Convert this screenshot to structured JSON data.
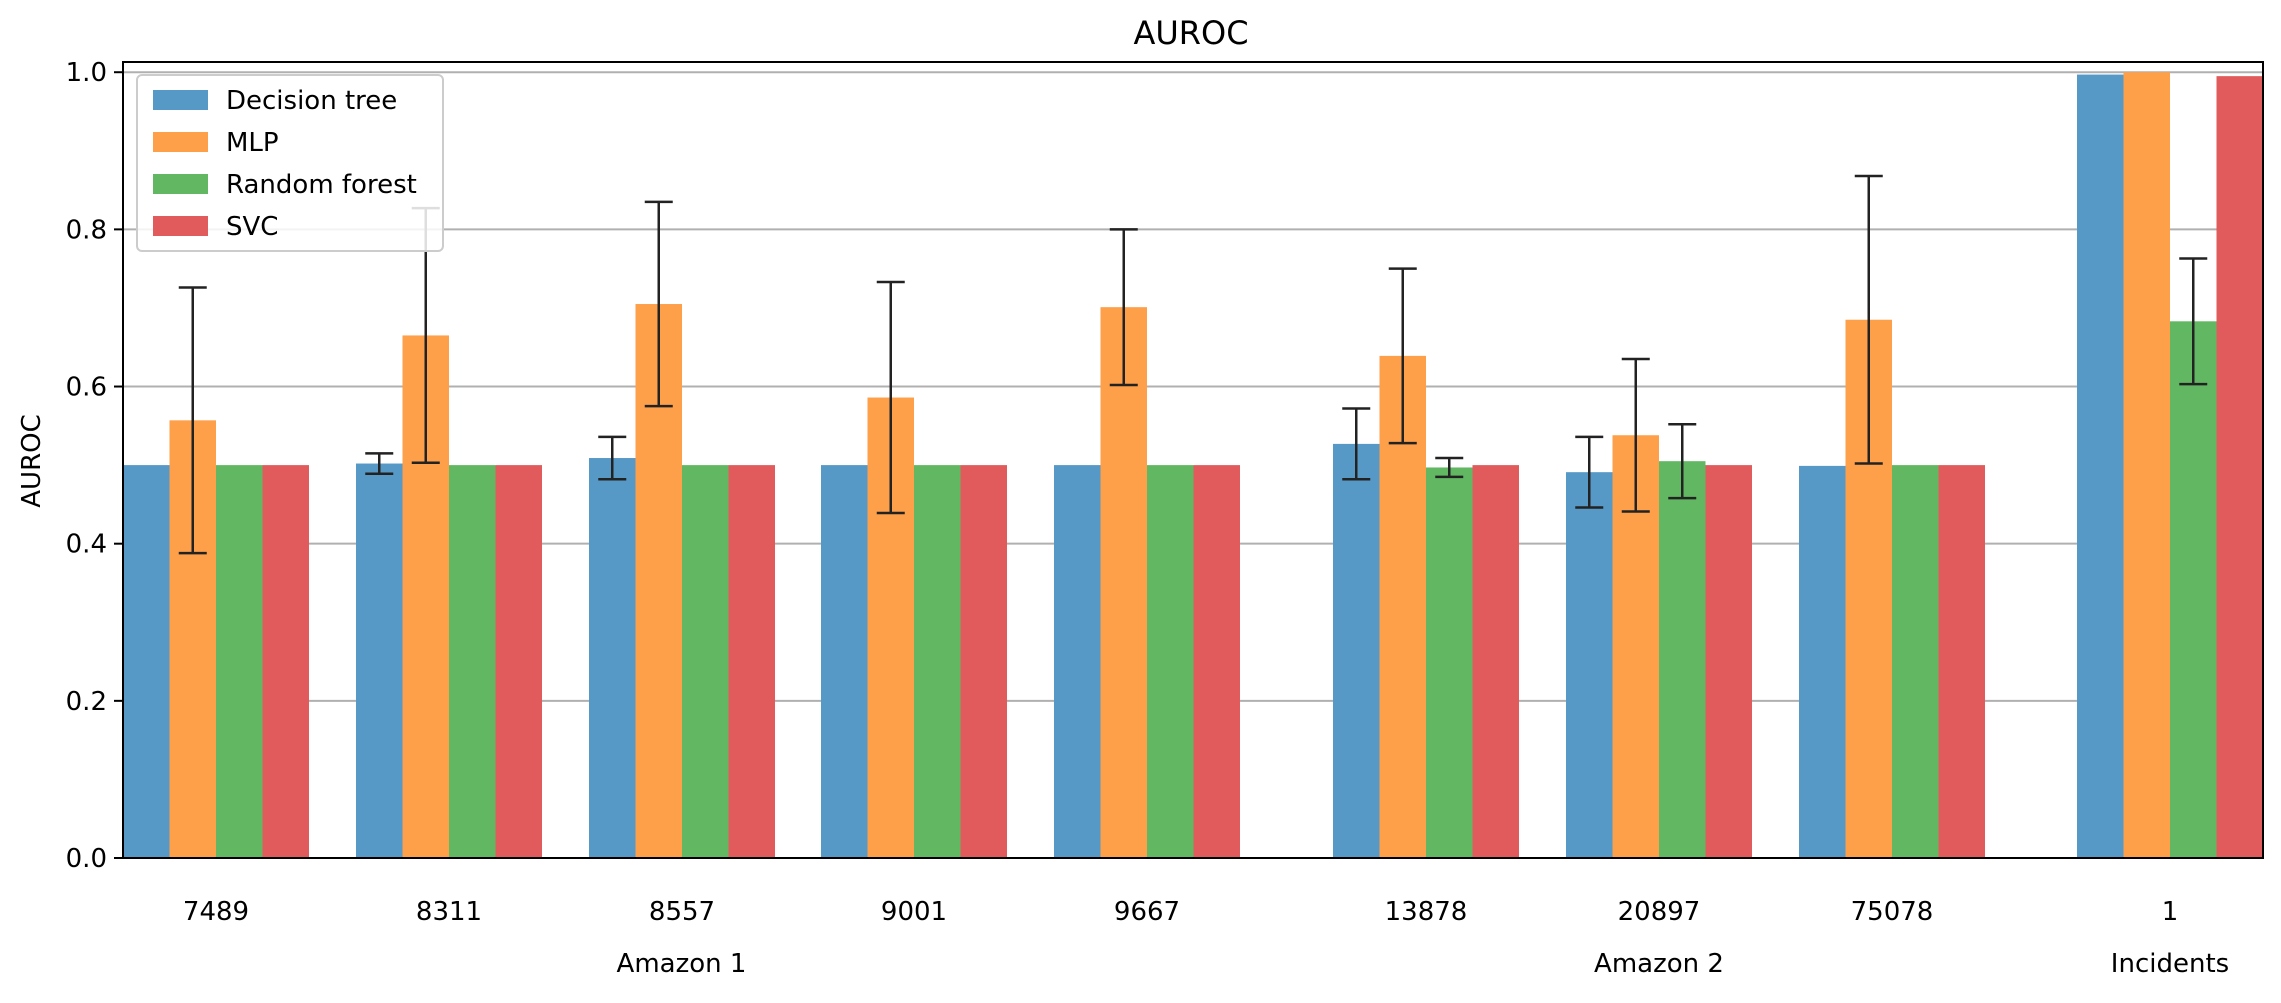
{
  "chart_data": {
    "type": "bar",
    "title": "AUROC",
    "ylabel": "AUROC",
    "xlabel": "",
    "ylim": [
      0,
      1.0
    ],
    "yticks": [
      "0.0",
      "0.2",
      "0.4",
      "0.6",
      "0.8",
      "1.0"
    ],
    "grid": "horizontal",
    "legend_placement": "top-left",
    "categories": [
      "7489",
      "8311",
      "8557",
      "9001",
      "9667",
      "13878",
      "20897",
      "75078",
      "1"
    ],
    "groups": [
      {
        "label": "Amazon 1",
        "categories": [
          "7489",
          "8311",
          "8557",
          "9001",
          "9667"
        ]
      },
      {
        "label": "Amazon 2",
        "categories": [
          "13878",
          "20897",
          "75078"
        ]
      },
      {
        "label": "Incidents",
        "categories": [
          "1"
        ]
      }
    ],
    "series": [
      {
        "name": "Decision tree",
        "color": "#5698c6",
        "values": [
          0.5,
          0.502,
          0.509,
          0.5,
          0.5,
          0.527,
          0.491,
          0.499,
          0.997
        ],
        "error": [
          null,
          0.013,
          0.027,
          null,
          null,
          0.045,
          0.045,
          null,
          null
        ]
      },
      {
        "name": "MLP",
        "color": "#fe9f4a",
        "values": [
          0.557,
          0.665,
          0.705,
          0.586,
          0.701,
          0.639,
          0.538,
          0.685,
          1.0
        ],
        "error": [
          0.169,
          0.162,
          0.13,
          0.147,
          0.099,
          0.111,
          0.097,
          0.183,
          null
        ]
      },
      {
        "name": "Random forest",
        "color": "#62b862",
        "values": [
          0.5,
          0.5,
          0.5,
          0.5,
          0.5,
          0.497,
          0.505,
          0.5,
          0.683
        ],
        "error": [
          null,
          null,
          null,
          null,
          null,
          0.012,
          0.047,
          null,
          0.08
        ]
      },
      {
        "name": "SVC",
        "color": "#e15b5c",
        "values": [
          0.5,
          0.5,
          0.5,
          0.5,
          0.5,
          0.5,
          0.5,
          0.5,
          0.995
        ],
        "error": [
          null,
          null,
          null,
          null,
          null,
          null,
          null,
          null,
          null
        ]
      }
    ]
  }
}
